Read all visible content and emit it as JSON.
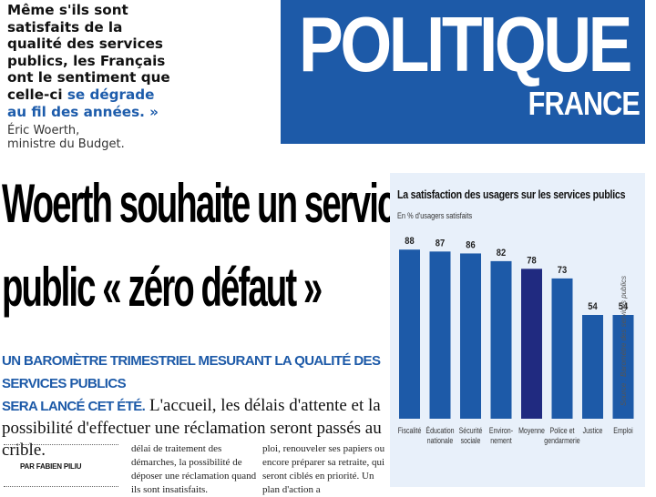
{
  "quote": {
    "lines": [
      "Même s'ils sont",
      "satisfaits de la",
      "qualité des services",
      "publics, les Français",
      "ont le sentiment que"
    ],
    "line6_plain": "celle-ci ",
    "line6_highlight": "se dégrade",
    "line7": "au fil des années. »",
    "author_name": "Éric Woerth,",
    "author_role": "ministre du Budget."
  },
  "banner": {
    "title": "POLITIQUE",
    "subtitle": "FRANCE",
    "color": "#1d5aa8"
  },
  "headline": {
    "line1": "Woerth souhaite un service",
    "line2": "public « zéro défaut »"
  },
  "lead": {
    "caps_line1": "UN BAROMÈTRE TRIMESTRIEL MESURANT LA QUALITÉ DES SERVICES PUBLICS",
    "caps_line2": "SERA LANCÉ CET ÉTÉ.",
    "text": " L'accueil, les délais d'attente et la possibilité d'effectuer une réclamation seront passés au crible."
  },
  "byline": "PAR FABIEN PILIU",
  "columns": [
    {
      "text": "délai de traitement des démarches, la possibilité de déposer une réclamation quand ils sont insatisfaits."
    },
    {
      "text": "ploi, renouveler ses papiers ou encore préparer sa retraite, qui seront ciblés en priorité. Un plan d'action a"
    }
  ],
  "chart_data": {
    "type": "bar",
    "title": "La satisfaction des usagers sur les services publics",
    "subtitle": "En % d'usagers satisfaits",
    "source": "Source : Baromètre des services publics",
    "categories": [
      [
        "Fiscalité"
      ],
      [
        "Éducation",
        "nationale"
      ],
      [
        "Sécurité",
        "sociale"
      ],
      [
        "Environ-",
        "nement"
      ],
      [
        "Moyenne"
      ],
      [
        "Police et",
        "gendarmerie"
      ],
      [
        "Justice"
      ],
      [
        "Emploi"
      ]
    ],
    "values": [
      88,
      87,
      86,
      82,
      78,
      73,
      54,
      54
    ],
    "ylim": [
      0,
      100
    ],
    "highlight_index": 4,
    "colors": {
      "bar": "#1d5aa8",
      "highlight": "#202a80",
      "background": "#e8f0fa"
    }
  }
}
